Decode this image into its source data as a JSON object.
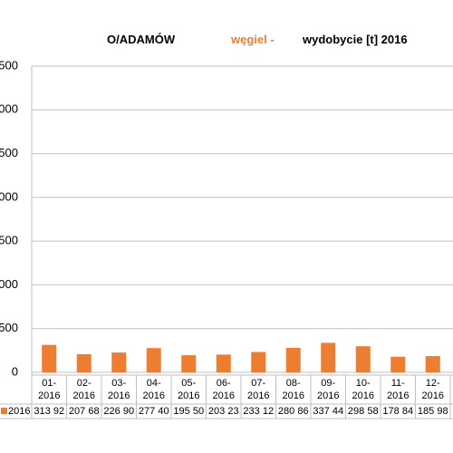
{
  "chart_data": {
    "type": "bar",
    "title": [
      "O/ADAMÓW",
      "węgiel -",
      "wydobycie [t] 2016"
    ],
    "title_colors": [
      "#000000",
      "#ed7d31",
      "#000000"
    ],
    "categories": [
      [
        "01-",
        "2016"
      ],
      [
        "02-",
        "2016"
      ],
      [
        "03-",
        "2016"
      ],
      [
        "04-",
        "2016"
      ],
      [
        "05-",
        "2016"
      ],
      [
        "06-",
        "2016"
      ],
      [
        "07-",
        "2016"
      ],
      [
        "08-",
        "2016"
      ],
      [
        "09-",
        "2016"
      ],
      [
        "10-",
        "2016"
      ],
      [
        "11-",
        "2016"
      ],
      [
        "12-",
        "2016"
      ]
    ],
    "series": [
      {
        "name": "2016",
        "color": "#ed7d31",
        "values": [
          313.92,
          207.68,
          226.9,
          277.4,
          195.5,
          203.23,
          233.12,
          280.86,
          337.44,
          298.58,
          178.84,
          185.98
        ],
        "value_labels": [
          "313 92",
          "207 68",
          "226 90",
          "277 40",
          "195 50",
          "203 23",
          "233 12",
          "280 86",
          "337 44",
          "298 58",
          "178 84",
          "185 98"
        ]
      }
    ],
    "ylim": [
      0,
      3500
    ],
    "yticks": [
      0,
      500,
      {
        "value": 1000,
        "label": "000"
      },
      {
        "value": 1500,
        "label": "500"
      },
      {
        "value": 2000,
        "label": "000"
      },
      {
        "value": 2500,
        "label": "500"
      },
      {
        "value": 3000,
        "label": "000"
      },
      {
        "value": 3500,
        "label": "500"
      }
    ],
    "grid": true
  }
}
